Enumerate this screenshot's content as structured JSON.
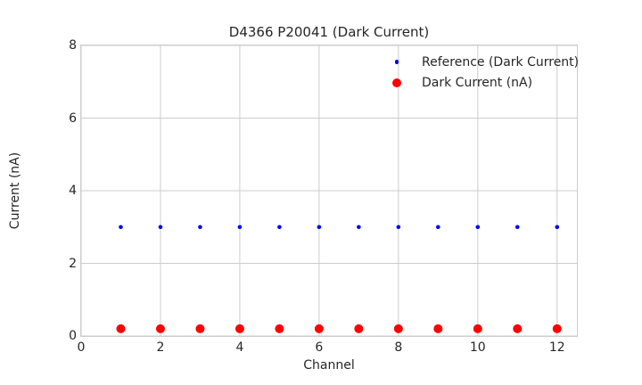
{
  "chart_data": {
    "type": "scatter",
    "title": "D4366 P20041 (Dark Current)",
    "xlabel": "Channel",
    "ylabel": "Current (nA)",
    "xlim": [
      0,
      12.5
    ],
    "ylim": [
      0,
      8
    ],
    "xticks": [
      0,
      2,
      4,
      6,
      8,
      10,
      12
    ],
    "yticks": [
      0,
      2,
      4,
      6,
      8
    ],
    "grid": true,
    "legend_position": "upper right",
    "x": [
      1,
      2,
      3,
      4,
      5,
      6,
      7,
      8,
      9,
      10,
      11,
      12
    ],
    "series": [
      {
        "name": "Reference (Dark Current)",
        "color": "#0000ff",
        "marker_radius": 2.3,
        "values": [
          3.0,
          3.0,
          3.0,
          3.0,
          3.0,
          3.0,
          3.0,
          3.0,
          3.0,
          3.0,
          3.0,
          3.0
        ]
      },
      {
        "name": "Dark Current (nA)",
        "color": "#ff0000",
        "marker_radius": 5,
        "values": [
          0.2,
          0.2,
          0.2,
          0.2,
          0.2,
          0.2,
          0.2,
          0.2,
          0.2,
          0.2,
          0.2,
          0.2
        ]
      }
    ],
    "colors": {
      "background": "#ffffff",
      "grid": "#cccccc",
      "spine": "#cccccc",
      "text": "#262626"
    }
  }
}
